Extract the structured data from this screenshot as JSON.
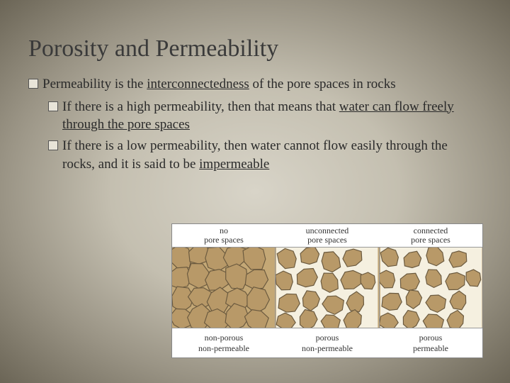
{
  "title": "Porosity and Permeability",
  "bullets": {
    "main": {
      "pre": "Permeability is the ",
      "under": "interconnectedness",
      "post": "  of the pore spaces in rocks"
    },
    "sub1": {
      "pre": "If there is a high permeability, then that means that ",
      "under": "water can flow freely through the pore spaces"
    },
    "sub2": {
      "pre": "If there is a low permeability, then water cannot flow easily through the rocks, and it is said to be ",
      "under": "impermeable"
    }
  },
  "diagram": {
    "type": "infographic",
    "panel_count": 3,
    "top_labels": [
      {
        "line1": "no",
        "line2": "pore spaces"
      },
      {
        "line1": "unconnected",
        "line2": "pore spaces"
      },
      {
        "line1": "connected",
        "line2": "pore spaces"
      }
    ],
    "bottom_labels": [
      {
        "line1": "non-porous",
        "line2": "non-permeable"
      },
      {
        "line1": "porous",
        "line2": "non-permeable"
      },
      {
        "line1": "porous",
        "line2": "permeable"
      }
    ],
    "colors": {
      "panel_background": "#c4a876",
      "grain_fill": "#b89968",
      "grain_stroke": "#6b5a3f",
      "pore_fill": "#f5f0e0",
      "diagram_border": "#888888",
      "label_text": "#333333",
      "slide_bg_inner": "#d8d4c8",
      "slide_bg_outer": "#6b6556"
    },
    "grains": {
      "panel1_tight": [
        [
          12,
          14,
          18
        ],
        [
          38,
          10,
          16
        ],
        [
          62,
          16,
          18
        ],
        [
          90,
          12,
          17
        ],
        [
          118,
          15,
          18
        ],
        [
          10,
          44,
          17
        ],
        [
          36,
          40,
          18
        ],
        [
          64,
          46,
          17
        ],
        [
          92,
          42,
          18
        ],
        [
          120,
          46,
          16
        ],
        [
          14,
          74,
          18
        ],
        [
          40,
          72,
          17
        ],
        [
          66,
          76,
          18
        ],
        [
          94,
          74,
          17
        ],
        [
          122,
          76,
          18
        ],
        [
          12,
          102,
          16
        ],
        [
          38,
          100,
          18
        ],
        [
          64,
          104,
          17
        ],
        [
          92,
          100,
          18
        ],
        [
          120,
          104,
          16
        ]
      ],
      "panel2_loose": [
        [
          16,
          16,
          15
        ],
        [
          48,
          12,
          14
        ],
        [
          78,
          20,
          15
        ],
        [
          110,
          14,
          14
        ],
        [
          12,
          48,
          14
        ],
        [
          44,
          44,
          15
        ],
        [
          76,
          50,
          14
        ],
        [
          108,
          46,
          15
        ],
        [
          132,
          48,
          12
        ],
        [
          18,
          80,
          15
        ],
        [
          50,
          76,
          14
        ],
        [
          82,
          82,
          15
        ],
        [
          114,
          78,
          14
        ],
        [
          14,
          106,
          13
        ],
        [
          46,
          104,
          14
        ],
        [
          78,
          108,
          13
        ],
        [
          110,
          104,
          14
        ]
      ],
      "panel3_connected": [
        [
          14,
          14,
          14
        ],
        [
          46,
          18,
          13
        ],
        [
          78,
          12,
          14
        ],
        [
          112,
          16,
          13
        ],
        [
          10,
          46,
          13
        ],
        [
          42,
          50,
          14
        ],
        [
          76,
          44,
          13
        ],
        [
          108,
          48,
          14
        ],
        [
          134,
          44,
          12
        ],
        [
          16,
          78,
          14
        ],
        [
          48,
          74,
          13
        ],
        [
          80,
          80,
          14
        ],
        [
          112,
          76,
          13
        ],
        [
          12,
          106,
          13
        ],
        [
          44,
          104,
          13
        ],
        [
          76,
          108,
          14
        ],
        [
          108,
          104,
          13
        ]
      ]
    }
  }
}
